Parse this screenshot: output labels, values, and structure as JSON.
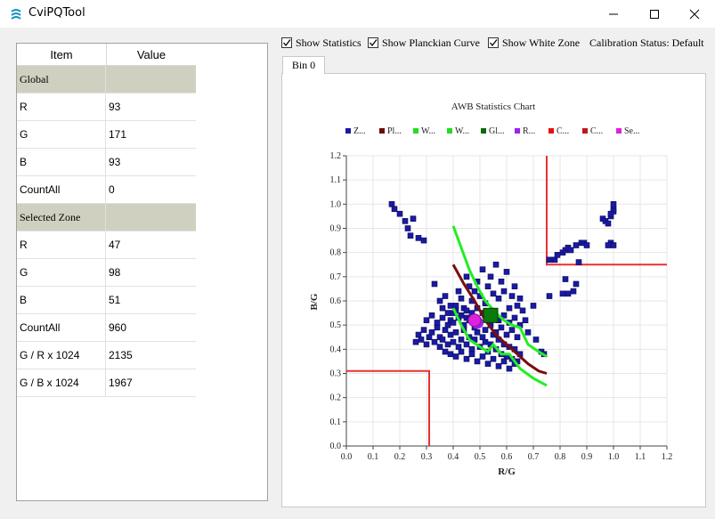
{
  "window": {
    "title": "CviPQTool"
  },
  "table": {
    "headers": [
      "Item",
      "Value"
    ],
    "rows": [
      {
        "item": "Global",
        "value": "",
        "section": true
      },
      {
        "item": "R",
        "value": "93"
      },
      {
        "item": "G",
        "value": "171"
      },
      {
        "item": "B",
        "value": "93"
      },
      {
        "item": "CountAll",
        "value": "0"
      },
      {
        "item": "Selected Zone",
        "value": "",
        "section": true
      },
      {
        "item": "R",
        "value": "47"
      },
      {
        "item": "G",
        "value": "98"
      },
      {
        "item": "B",
        "value": "51"
      },
      {
        "item": "CountAll",
        "value": "960"
      },
      {
        "item": "G / R x 1024",
        "value": "2135"
      },
      {
        "item": "G / B x 1024",
        "value": "1967"
      }
    ]
  },
  "options": {
    "show_statistics": {
      "label": "Show Statistics",
      "checked": true
    },
    "show_planckian": {
      "label": "Show Planckian Curve",
      "checked": true
    },
    "show_white_zone": {
      "label": "Show White Zone",
      "checked": true
    },
    "calibration_status": "Calibration Status: Default"
  },
  "tabs": [
    "Bin 0"
  ],
  "chart_data": {
    "type": "scatter",
    "title": "AWB Statistics Chart",
    "xlabel": "R/G",
    "ylabel": "B/G",
    "xlim": [
      0.0,
      1.2
    ],
    "ylim": [
      0.0,
      1.2
    ],
    "xticks": [
      "0.0",
      "0.1",
      "0.2",
      "0.3",
      "0.4",
      "0.5",
      "0.6",
      "0.7",
      "0.8",
      "0.9",
      "1.0",
      "1.1",
      "1.2"
    ],
    "yticks": [
      "0.0",
      "0.1",
      "0.2",
      "0.3",
      "0.4",
      "0.5",
      "0.6",
      "0.7",
      "0.8",
      "0.9",
      "1.0",
      "1.1",
      "1.2"
    ],
    "grid": true,
    "legend_position": "top",
    "legend": [
      {
        "label": "Z...",
        "color": "#1a1aa6",
        "shape": "square"
      },
      {
        "label": "Pl...",
        "color": "#6b0a0a",
        "shape": "square"
      },
      {
        "label": "W...",
        "color": "#22dd22",
        "shape": "square"
      },
      {
        "label": "W...",
        "color": "#22dd22",
        "shape": "square"
      },
      {
        "label": "Gl...",
        "color": "#0a6a0a",
        "shape": "square"
      },
      {
        "label": "R...",
        "color": "#a020f0",
        "shape": "square"
      },
      {
        "label": "C...",
        "color": "#e81010",
        "shape": "square"
      },
      {
        "label": "C...",
        "color": "#c01818",
        "shape": "square"
      },
      {
        "label": "Se...",
        "color": "#e020e0",
        "shape": "square"
      }
    ],
    "zone_points": [
      [
        0.17,
        1.0
      ],
      [
        0.18,
        0.98
      ],
      [
        0.2,
        0.96
      ],
      [
        0.22,
        0.93
      ],
      [
        0.25,
        0.94
      ],
      [
        0.23,
        0.9
      ],
      [
        0.24,
        0.87
      ],
      [
        0.27,
        0.86
      ],
      [
        0.29,
        0.85
      ],
      [
        0.33,
        0.67
      ],
      [
        0.35,
        0.6
      ],
      [
        0.36,
        0.57
      ],
      [
        0.37,
        0.62
      ],
      [
        0.38,
        0.55
      ],
      [
        0.39,
        0.52
      ],
      [
        0.4,
        0.55
      ],
      [
        0.41,
        0.58
      ],
      [
        0.42,
        0.64
      ],
      [
        0.43,
        0.61
      ],
      [
        0.44,
        0.57
      ],
      [
        0.45,
        0.7
      ],
      [
        0.45,
        0.53
      ],
      [
        0.46,
        0.66
      ],
      [
        0.47,
        0.6
      ],
      [
        0.48,
        0.64
      ],
      [
        0.49,
        0.68
      ],
      [
        0.5,
        0.62
      ],
      [
        0.51,
        0.73
      ],
      [
        0.52,
        0.59
      ],
      [
        0.53,
        0.66
      ],
      [
        0.54,
        0.7
      ],
      [
        0.55,
        0.63
      ],
      [
        0.56,
        0.75
      ],
      [
        0.57,
        0.61
      ],
      [
        0.58,
        0.68
      ],
      [
        0.59,
        0.64
      ],
      [
        0.6,
        0.72
      ],
      [
        0.61,
        0.57
      ],
      [
        0.62,
        0.62
      ],
      [
        0.63,
        0.66
      ],
      [
        0.64,
        0.58
      ],
      [
        0.65,
        0.61
      ],
      [
        0.66,
        0.56
      ],
      [
        0.67,
        0.52
      ],
      [
        0.68,
        0.47
      ],
      [
        0.7,
        0.58
      ],
      [
        0.71,
        0.44
      ],
      [
        0.73,
        0.39
      ],
      [
        0.74,
        0.38
      ],
      [
        0.76,
        0.62
      ],
      [
        0.26,
        0.43
      ],
      [
        0.27,
        0.46
      ],
      [
        0.28,
        0.44
      ],
      [
        0.29,
        0.48
      ],
      [
        0.3,
        0.42
      ],
      [
        0.31,
        0.45
      ],
      [
        0.32,
        0.47
      ],
      [
        0.33,
        0.43
      ],
      [
        0.34,
        0.49
      ],
      [
        0.35,
        0.45
      ],
      [
        0.36,
        0.44
      ],
      [
        0.37,
        0.48
      ],
      [
        0.38,
        0.42
      ],
      [
        0.39,
        0.46
      ],
      [
        0.4,
        0.43
      ],
      [
        0.41,
        0.47
      ],
      [
        0.42,
        0.41
      ],
      [
        0.43,
        0.44
      ],
      [
        0.44,
        0.48
      ],
      [
        0.45,
        0.42
      ],
      [
        0.46,
        0.45
      ],
      [
        0.47,
        0.4
      ],
      [
        0.48,
        0.44
      ],
      [
        0.49,
        0.47
      ],
      [
        0.5,
        0.41
      ],
      [
        0.51,
        0.45
      ],
      [
        0.52,
        0.43
      ],
      [
        0.53,
        0.39
      ],
      [
        0.54,
        0.42
      ],
      [
        0.55,
        0.46
      ],
      [
        0.56,
        0.4
      ],
      [
        0.57,
        0.44
      ],
      [
        0.58,
        0.38
      ],
      [
        0.59,
        0.42
      ],
      [
        0.6,
        0.37
      ],
      [
        0.61,
        0.41
      ],
      [
        0.62,
        0.36
      ],
      [
        0.63,
        0.4
      ],
      [
        0.64,
        0.35
      ],
      [
        0.65,
        0.38
      ],
      [
        0.3,
        0.52
      ],
      [
        0.32,
        0.54
      ],
      [
        0.34,
        0.51
      ],
      [
        0.36,
        0.53
      ],
      [
        0.38,
        0.5
      ],
      [
        0.4,
        0.51
      ],
      [
        0.42,
        0.53
      ],
      [
        0.44,
        0.5
      ],
      [
        0.46,
        0.52
      ],
      [
        0.48,
        0.49
      ],
      [
        0.5,
        0.51
      ],
      [
        0.52,
        0.48
      ],
      [
        0.54,
        0.5
      ],
      [
        0.56,
        0.47
      ],
      [
        0.58,
        0.49
      ],
      [
        0.6,
        0.46
      ],
      [
        0.62,
        0.48
      ],
      [
        0.64,
        0.45
      ],
      [
        0.35,
        0.41
      ],
      [
        0.37,
        0.39
      ],
      [
        0.39,
        0.38
      ],
      [
        0.41,
        0.37
      ],
      [
        0.43,
        0.39
      ],
      [
        0.45,
        0.36
      ],
      [
        0.47,
        0.38
      ],
      [
        0.49,
        0.35
      ],
      [
        0.51,
        0.37
      ],
      [
        0.53,
        0.34
      ],
      [
        0.55,
        0.36
      ],
      [
        0.57,
        0.33
      ],
      [
        0.59,
        0.35
      ],
      [
        0.61,
        0.32
      ],
      [
        0.63,
        0.34
      ],
      [
        0.39,
        0.58
      ],
      [
        0.41,
        0.56
      ],
      [
        0.43,
        0.54
      ],
      [
        0.45,
        0.56
      ],
      [
        0.47,
        0.55
      ],
      [
        0.49,
        0.57
      ],
      [
        0.51,
        0.55
      ],
      [
        0.53,
        0.53
      ],
      [
        0.55,
        0.55
      ],
      [
        0.57,
        0.52
      ],
      [
        0.59,
        0.54
      ],
      [
        0.61,
        0.51
      ],
      [
        0.63,
        0.53
      ],
      [
        0.65,
        0.5
      ],
      [
        0.78,
        0.77
      ],
      [
        0.79,
        0.79
      ],
      [
        0.81,
        0.8
      ],
      [
        0.82,
        0.81
      ],
      [
        0.83,
        0.82
      ],
      [
        0.84,
        0.81
      ],
      [
        0.86,
        0.83
      ],
      [
        0.88,
        0.84
      ],
      [
        0.89,
        0.84
      ],
      [
        0.9,
        0.83
      ],
      [
        0.87,
        0.76
      ],
      [
        0.82,
        0.69
      ],
      [
        0.81,
        0.63
      ],
      [
        0.83,
        0.63
      ],
      [
        0.85,
        0.64
      ],
      [
        0.86,
        0.67
      ],
      [
        0.76,
        0.77
      ],
      [
        0.96,
        0.94
      ],
      [
        0.97,
        0.93
      ],
      [
        0.98,
        0.92
      ],
      [
        0.99,
        0.95
      ],
      [
        1.0,
        0.98
      ],
      [
        1.0,
        1.0
      ],
      [
        1.0,
        0.97
      ],
      [
        0.99,
        0.84
      ],
      [
        1.0,
        0.83
      ],
      [
        0.98,
        0.83
      ],
      [
        0.99,
        0.96
      ]
    ],
    "planckian_curve": [
      [
        0.4,
        0.75
      ],
      [
        0.44,
        0.67
      ],
      [
        0.48,
        0.6
      ],
      [
        0.52,
        0.52
      ],
      [
        0.56,
        0.46
      ],
      [
        0.6,
        0.42
      ],
      [
        0.64,
        0.38
      ],
      [
        0.68,
        0.34
      ],
      [
        0.72,
        0.31
      ],
      [
        0.75,
        0.3
      ]
    ],
    "white_zone_upper": [
      [
        0.4,
        0.91
      ],
      [
        0.43,
        0.82
      ],
      [
        0.46,
        0.73
      ],
      [
        0.49,
        0.66
      ],
      [
        0.52,
        0.6
      ],
      [
        0.56,
        0.55
      ],
      [
        0.59,
        0.52
      ],
      [
        0.62,
        0.5
      ],
      [
        0.65,
        0.49
      ],
      [
        0.68,
        0.42
      ],
      [
        0.72,
        0.39
      ],
      [
        0.75,
        0.37
      ]
    ],
    "white_zone_lower": [
      [
        0.4,
        0.57
      ],
      [
        0.43,
        0.5
      ],
      [
        0.46,
        0.44
      ],
      [
        0.5,
        0.41
      ],
      [
        0.53,
        0.39
      ],
      [
        0.55,
        0.42
      ],
      [
        0.58,
        0.38
      ],
      [
        0.61,
        0.38
      ],
      [
        0.65,
        0.32
      ],
      [
        0.7,
        0.28
      ],
      [
        0.75,
        0.25
      ]
    ],
    "global_point": [
      0.54,
      0.54
    ],
    "region_point": [
      0.49,
      0.51
    ],
    "selected_point": [
      0.48,
      0.52
    ],
    "calibration_lines_upper": [
      [
        0.75,
        1.2
      ],
      [
        0.75,
        0.75
      ],
      [
        1.2,
        0.75
      ]
    ],
    "calibration_lines_lower": [
      [
        0.0,
        0.31
      ],
      [
        0.31,
        0.31
      ],
      [
        0.31,
        0.0
      ]
    ]
  }
}
